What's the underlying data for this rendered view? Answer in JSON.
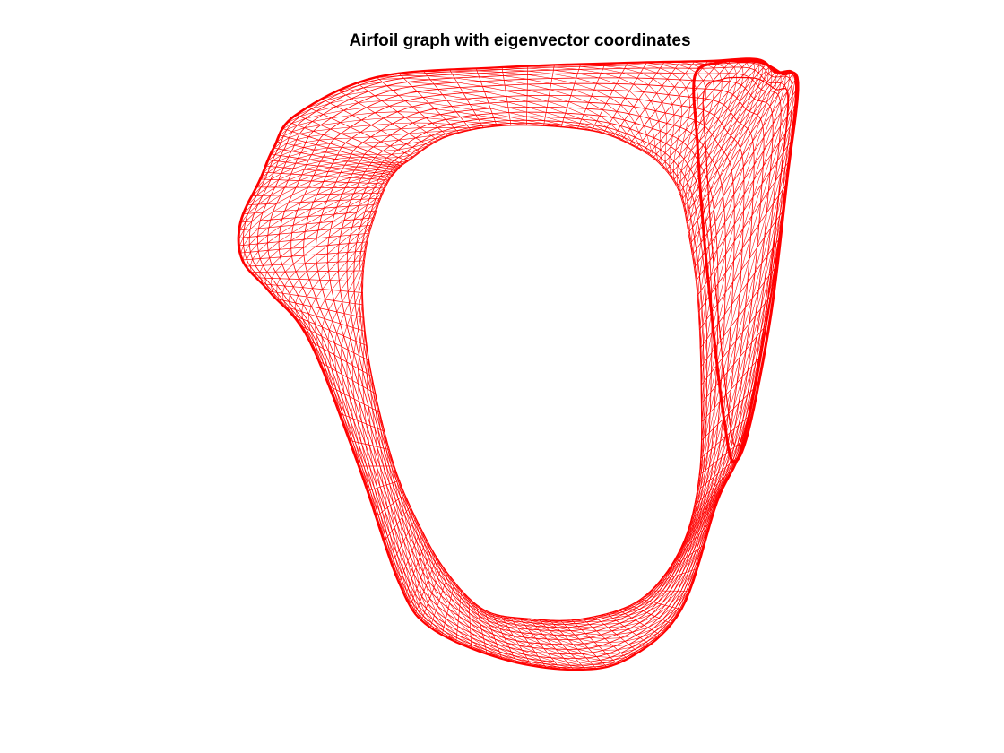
{
  "figure": {
    "title": "Airfoil graph with eigenvector coordinates"
  },
  "graph": {
    "edge_color": "#ff0000",
    "background": "#ffffff",
    "style": "dense triangulated mesh ring",
    "axes_visible": false
  }
}
